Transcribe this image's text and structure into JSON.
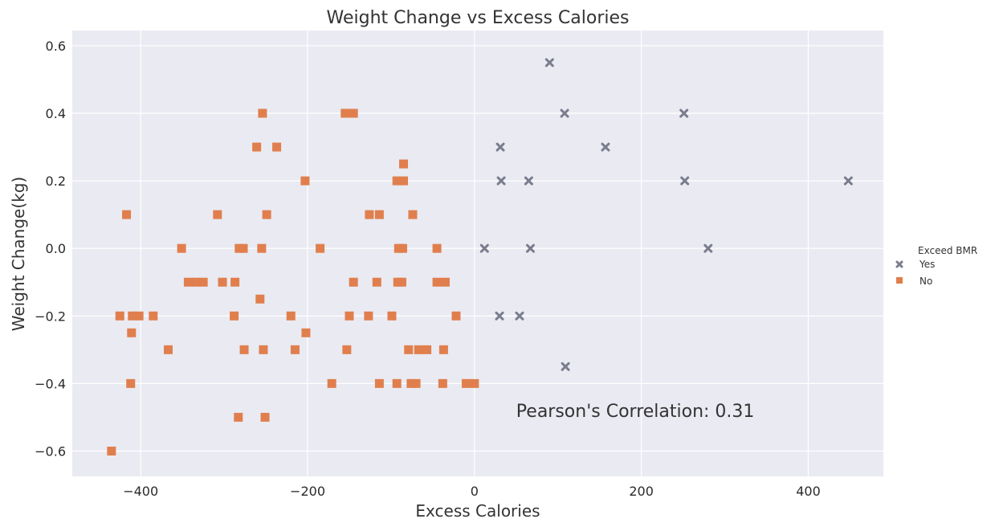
{
  "chart_data": {
    "type": "scatter",
    "title": "Weight Change vs Excess Calories",
    "xlabel": "Excess Calories",
    "ylabel": "Weight Change(kg)",
    "xlim": [
      -482,
      490
    ],
    "ylim": [
      -0.675,
      0.645
    ],
    "xticks": [
      -400,
      -200,
      0,
      200,
      400
    ],
    "yticks": [
      -0.6,
      -0.4,
      -0.2,
      0.0,
      0.2,
      0.4,
      0.6
    ],
    "xtick_labels": [
      "−400",
      "−200",
      "0",
      "200",
      "400"
    ],
    "ytick_labels": [
      "−0.6",
      "−0.4",
      "−0.2",
      "0.0",
      "0.2",
      "0.4",
      "0.6"
    ],
    "grid": true,
    "legend": {
      "title": "Exceed BMR",
      "placement": "right"
    },
    "annotation": {
      "text": "Pearson's Correlation: 0.31",
      "x": 50,
      "y": -0.48
    },
    "series": [
      {
        "name": "Yes",
        "marker": "x",
        "color": "#7a7d8e",
        "points": [
          [
            90,
            0.55
          ],
          [
            108,
            0.4
          ],
          [
            251,
            0.4
          ],
          [
            31,
            0.3
          ],
          [
            157,
            0.3
          ],
          [
            32,
            0.2
          ],
          [
            65,
            0.2
          ],
          [
            252,
            0.2
          ],
          [
            448,
            0.2
          ],
          [
            12,
            0.0
          ],
          [
            67,
            0.0
          ],
          [
            280,
            0.0
          ],
          [
            30,
            -0.2
          ],
          [
            54,
            -0.2
          ],
          [
            109,
            -0.35
          ]
        ]
      },
      {
        "name": "No",
        "marker": "s",
        "color": "#e07f4d",
        "points": [
          [
            -435,
            -0.6
          ],
          [
            -417,
            0.1
          ],
          [
            -425,
            -0.2
          ],
          [
            -410,
            -0.2
          ],
          [
            -402,
            -0.2
          ],
          [
            -385,
            -0.2
          ],
          [
            -411,
            -0.25
          ],
          [
            -412,
            -0.4
          ],
          [
            -367,
            -0.3
          ],
          [
            -351,
            0.0
          ],
          [
            -343,
            -0.1
          ],
          [
            -334,
            -0.1
          ],
          [
            -325,
            -0.1
          ],
          [
            -308,
            0.1
          ],
          [
            -302,
            -0.1
          ],
          [
            -287,
            -0.1
          ],
          [
            -288,
            -0.2
          ],
          [
            -283,
            -0.5
          ],
          [
            -282,
            0.0
          ],
          [
            -277,
            0.0
          ],
          [
            -276,
            -0.3
          ],
          [
            -254,
            0.4
          ],
          [
            -261,
            0.3
          ],
          [
            -237,
            0.3
          ],
          [
            -249,
            0.1
          ],
          [
            -255,
            0.0
          ],
          [
            -257,
            -0.15
          ],
          [
            -253,
            -0.3
          ],
          [
            -251,
            -0.5
          ],
          [
            -203,
            0.2
          ],
          [
            -185,
            0.0
          ],
          [
            -220,
            -0.2
          ],
          [
            -215,
            -0.3
          ],
          [
            -202,
            -0.25
          ],
          [
            -171,
            -0.4
          ],
          [
            -155,
            0.4
          ],
          [
            -145,
            0.4
          ],
          [
            -145,
            -0.1
          ],
          [
            -150,
            -0.2
          ],
          [
            -153,
            -0.3
          ],
          [
            -126,
            0.1
          ],
          [
            -114,
            0.1
          ],
          [
            -117,
            -0.1
          ],
          [
            -127,
            -0.2
          ],
          [
            -114,
            -0.4
          ],
          [
            -93,
            0.2
          ],
          [
            -85,
            0.2
          ],
          [
            -85,
            0.25
          ],
          [
            -91,
            0.0
          ],
          [
            -86,
            0.0
          ],
          [
            -92,
            -0.1
          ],
          [
            -87,
            -0.1
          ],
          [
            -99,
            -0.2
          ],
          [
            -93,
            -0.4
          ],
          [
            -74,
            0.1
          ],
          [
            -79,
            -0.3
          ],
          [
            -67,
            -0.3
          ],
          [
            -57,
            -0.3
          ],
          [
            -76,
            -0.4
          ],
          [
            -70,
            -0.4
          ],
          [
            -45,
            0.0
          ],
          [
            -45,
            -0.1
          ],
          [
            -35,
            -0.1
          ],
          [
            -37,
            -0.3
          ],
          [
            -38,
            -0.4
          ],
          [
            -22,
            -0.2
          ],
          [
            -10,
            -0.4
          ],
          [
            0,
            -0.4
          ]
        ]
      }
    ]
  }
}
